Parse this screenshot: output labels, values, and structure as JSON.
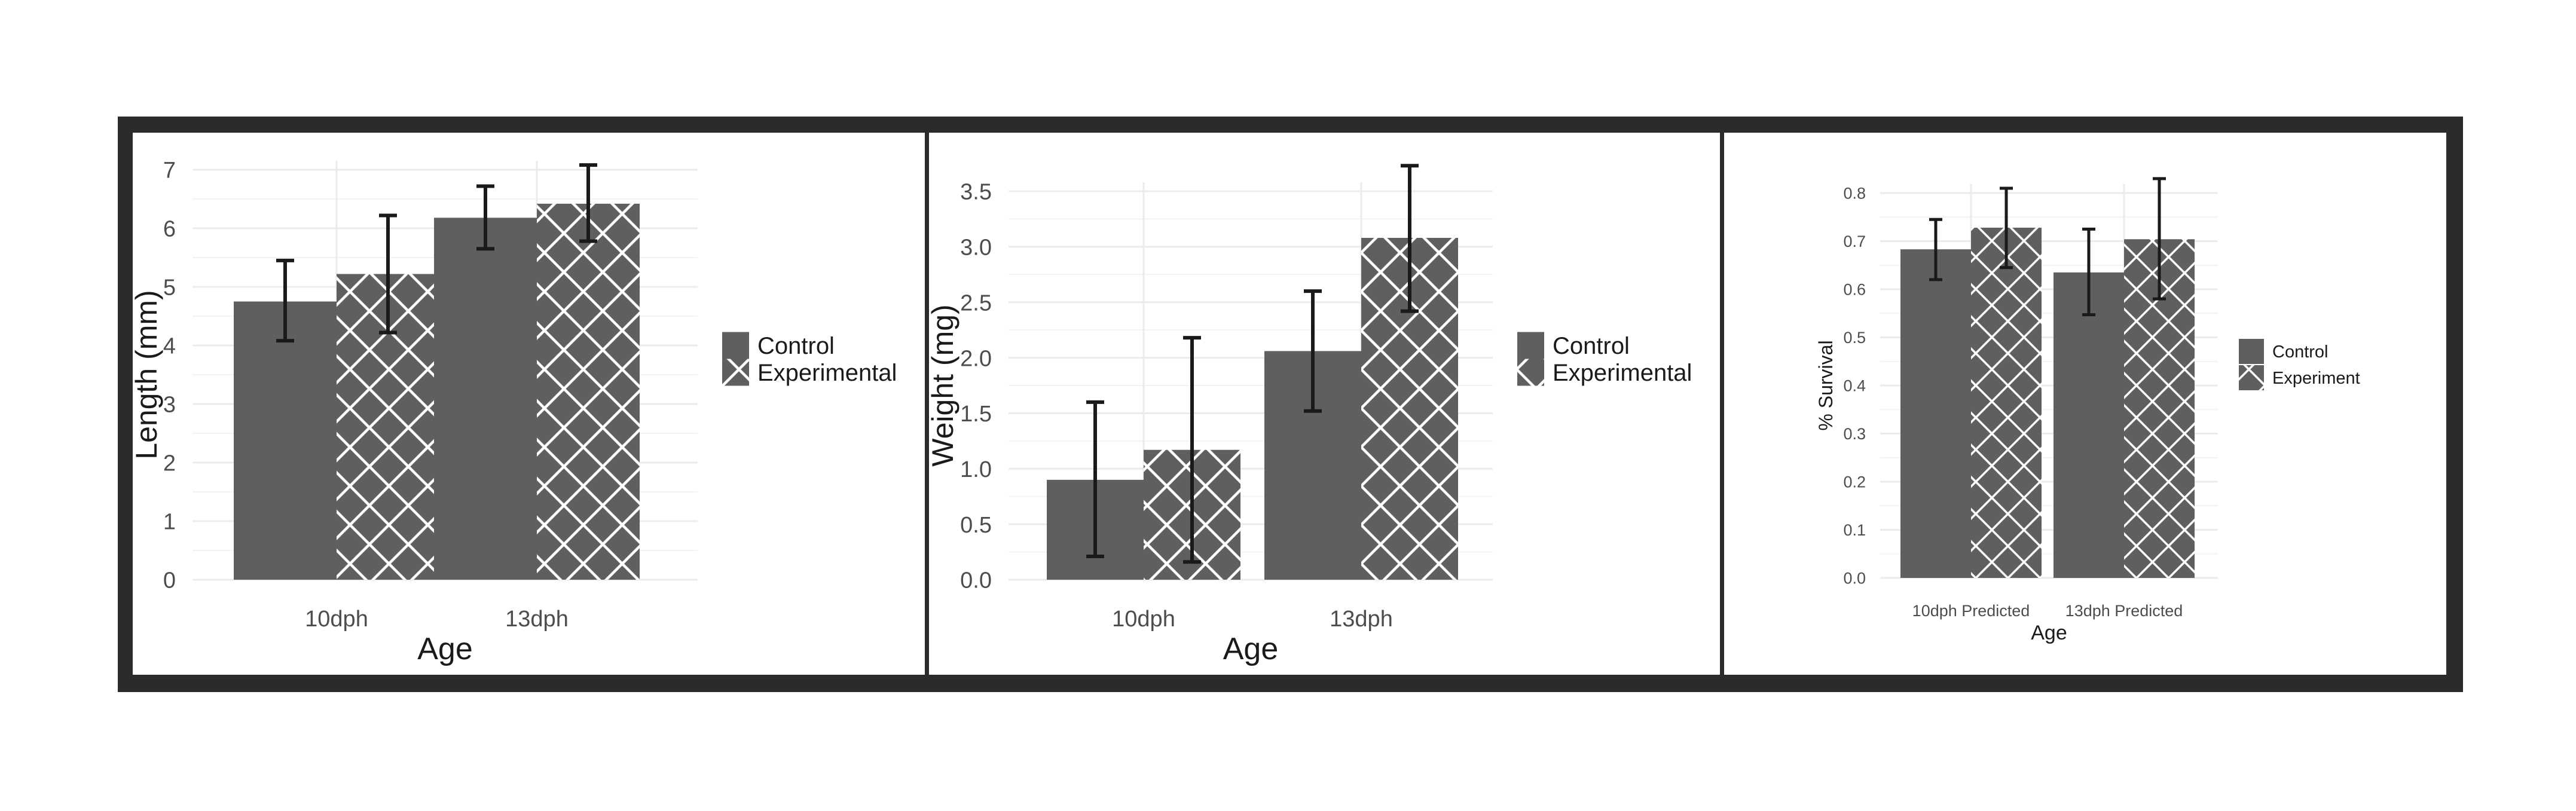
{
  "colors": {
    "frame": "#2b2b2b",
    "bar": "#5f5f5f",
    "hatch": "#ffffff",
    "grid": "#ebebeb",
    "axis_text": "#4d4d4d",
    "label_text": "#1a1a1a",
    "error_bar": "#1a1a1a"
  },
  "chart_data": [
    {
      "type": "bar",
      "title": "",
      "xlabel": "Age",
      "ylabel": "Length (mm)",
      "categories": [
        "10dph",
        "13dph"
      ],
      "ylim": [
        0,
        7
      ],
      "yticks": [
        0,
        1,
        2,
        3,
        4,
        5,
        6,
        7
      ],
      "ytick_labels": [
        "0",
        "1",
        "2",
        "3",
        "4",
        "5",
        "6",
        "7"
      ],
      "series": [
        {
          "name": "Control",
          "pattern": "solid",
          "values": [
            4.75,
            6.18
          ],
          "err_low": [
            4.08,
            5.65
          ],
          "err_high": [
            5.45,
            6.72
          ]
        },
        {
          "name": "Experimental",
          "pattern": "crosshatch",
          "values": [
            5.22,
            6.42
          ],
          "err_low": [
            4.22,
            5.78
          ],
          "err_high": [
            6.22,
            7.08
          ]
        }
      ],
      "legend": [
        "Control",
        "Experimental"
      ],
      "legend_position": "right"
    },
    {
      "type": "bar",
      "title": "",
      "xlabel": "Age",
      "ylabel": "Weight (mg)",
      "categories": [
        "10dph",
        "13dph"
      ],
      "ylim": [
        0,
        3.5
      ],
      "yticks": [
        0,
        0.5,
        1,
        1.5,
        2,
        2.5,
        3,
        3.5
      ],
      "ytick_labels": [
        "0.0",
        "0.5",
        "1.0",
        "1.5",
        "2.0",
        "2.5",
        "3.0",
        "3.5"
      ],
      "series": [
        {
          "name": "Control",
          "pattern": "solid",
          "values": [
            0.9,
            2.06
          ],
          "err_low": [
            0.21,
            1.52
          ],
          "err_high": [
            1.6,
            2.6
          ]
        },
        {
          "name": "Experimental",
          "pattern": "crosshatch",
          "values": [
            1.17,
            3.08
          ],
          "err_low": [
            0.16,
            2.42
          ],
          "err_high": [
            2.18,
            3.73
          ]
        }
      ],
      "legend": [
        "Control",
        "Experimental"
      ],
      "legend_position": "right"
    },
    {
      "type": "bar",
      "title": "",
      "xlabel": "Age",
      "ylabel": "% Survival",
      "categories": [
        "10dph Predicted",
        "13dph Predicted"
      ],
      "ylim": [
        0,
        0.8
      ],
      "yticks": [
        0,
        0.1,
        0.2,
        0.3,
        0.4,
        0.5,
        0.6,
        0.7,
        0.8
      ],
      "ytick_labels": [
        "0.0",
        "0.1",
        "0.2",
        "0.3",
        "0.4",
        "0.5",
        "0.6",
        "0.7",
        "0.8"
      ],
      "series": [
        {
          "name": "Control",
          "pattern": "solid",
          "values": [
            0.683,
            0.635
          ],
          "err_low": [
            0.62,
            0.547
          ],
          "err_high": [
            0.745,
            0.725
          ]
        },
        {
          "name": "Experiment",
          "pattern": "crosshatch",
          "values": [
            0.728,
            0.704
          ],
          "err_low": [
            0.645,
            0.58
          ],
          "err_high": [
            0.81,
            0.83
          ]
        }
      ],
      "legend": [
        "Control",
        "Experiment"
      ],
      "legend_position": "right"
    }
  ]
}
